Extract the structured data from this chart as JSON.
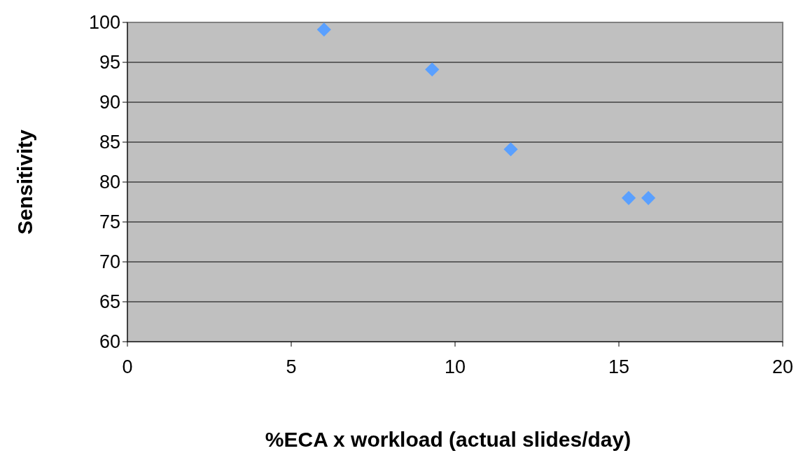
{
  "chart_data": {
    "type": "scatter",
    "xlabel": "%ECA x workload (actual slides/day)",
    "ylabel": "Sensitivity",
    "x": [
      6.0,
      9.3,
      11.7,
      15.3,
      15.9
    ],
    "series": [
      {
        "color": "#5aa0ff",
        "values": [
          99.1,
          94.1,
          84.1,
          78.0,
          78.0
        ]
      }
    ],
    "xlim": [
      0,
      20
    ],
    "xticks": [
      0,
      5,
      10,
      15,
      20
    ],
    "ylim": [
      60,
      100
    ],
    "yticks": [
      60,
      65,
      70,
      75,
      80,
      85,
      90,
      95,
      100
    ],
    "grid": "y",
    "marker": "diamond"
  }
}
